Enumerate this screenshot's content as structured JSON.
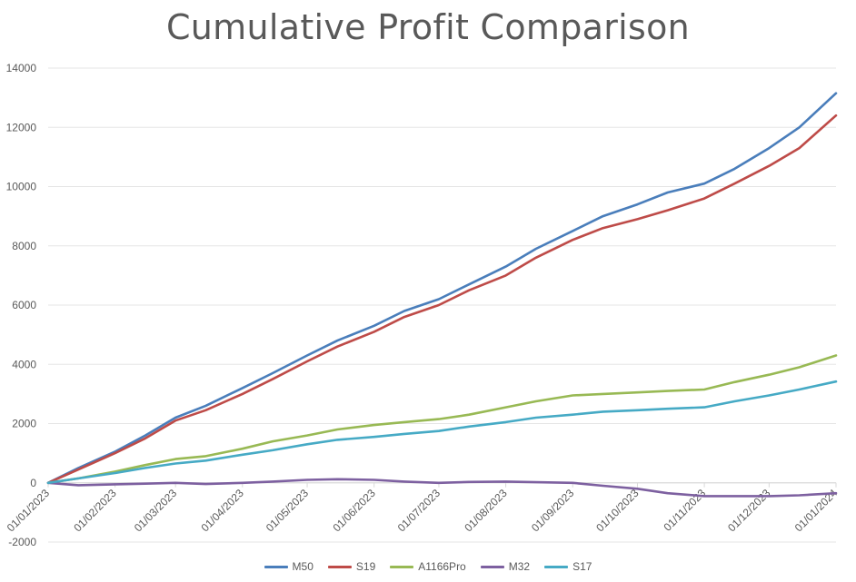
{
  "chart_data": {
    "type": "line",
    "title": "Cumulative Profit Comparison",
    "xlabel": "",
    "ylabel": "",
    "ylim": [
      -2000,
      14000
    ],
    "yticks": [
      -2000,
      0,
      2000,
      4000,
      6000,
      8000,
      10000,
      12000,
      14000
    ],
    "xticks": [
      "01/01/2023",
      "01/02/2023",
      "01/03/2023",
      "01/04/2023",
      "01/05/2023",
      "01/06/2023",
      "01/07/2023",
      "01/08/2023",
      "01/09/2023",
      "01/10/2023",
      "01/11/2023",
      "01/12/2023",
      "01/01/2024"
    ],
    "grid": true,
    "legend_position": "bottom",
    "x": [
      "01/01/2023",
      "15/01/2023",
      "01/02/2023",
      "15/02/2023",
      "01/03/2023",
      "15/03/2023",
      "01/04/2023",
      "15/04/2023",
      "01/05/2023",
      "15/05/2023",
      "01/06/2023",
      "15/06/2023",
      "01/07/2023",
      "15/07/2023",
      "01/08/2023",
      "15/08/2023",
      "01/09/2023",
      "15/09/2023",
      "01/10/2023",
      "15/10/2023",
      "01/11/2023",
      "15/11/2023",
      "01/12/2023",
      "15/12/2023",
      "01/01/2024"
    ],
    "series": [
      {
        "name": "M50",
        "color": "#4a7ebb",
        "values": [
          0,
          500,
          1050,
          1600,
          2200,
          2600,
          3200,
          3700,
          4300,
          4800,
          5300,
          5800,
          6200,
          6700,
          7300,
          7900,
          8500,
          9000,
          9400,
          9800,
          10100,
          10600,
          11300,
          12000,
          13150
        ]
      },
      {
        "name": "S19",
        "color": "#be4b48",
        "values": [
          0,
          450,
          1000,
          1500,
          2100,
          2450,
          3000,
          3500,
          4100,
          4600,
          5100,
          5600,
          6000,
          6500,
          7000,
          7600,
          8200,
          8600,
          8900,
          9200,
          9600,
          10100,
          10700,
          11300,
          12400
        ]
      },
      {
        "name": "A1166Pro",
        "color": "#98b954",
        "values": [
          0,
          150,
          380,
          600,
          800,
          900,
          1150,
          1400,
          1600,
          1800,
          1950,
          2050,
          2150,
          2300,
          2550,
          2750,
          2950,
          3000,
          3050,
          3100,
          3150,
          3400,
          3650,
          3900,
          4300
        ]
      },
      {
        "name": "M32",
        "color": "#7d60a0",
        "values": [
          0,
          -80,
          -50,
          -30,
          0,
          -40,
          0,
          40,
          100,
          120,
          100,
          40,
          0,
          30,
          40,
          20,
          0,
          -100,
          -200,
          -350,
          -450,
          -450,
          -450,
          -420,
          -350
        ]
      },
      {
        "name": "S17",
        "color": "#46aac5",
        "values": [
          0,
          150,
          330,
          500,
          650,
          750,
          950,
          1100,
          1300,
          1450,
          1550,
          1650,
          1750,
          1900,
          2050,
          2200,
          2300,
          2400,
          2450,
          2500,
          2550,
          2750,
          2950,
          3150,
          3420
        ]
      }
    ]
  }
}
